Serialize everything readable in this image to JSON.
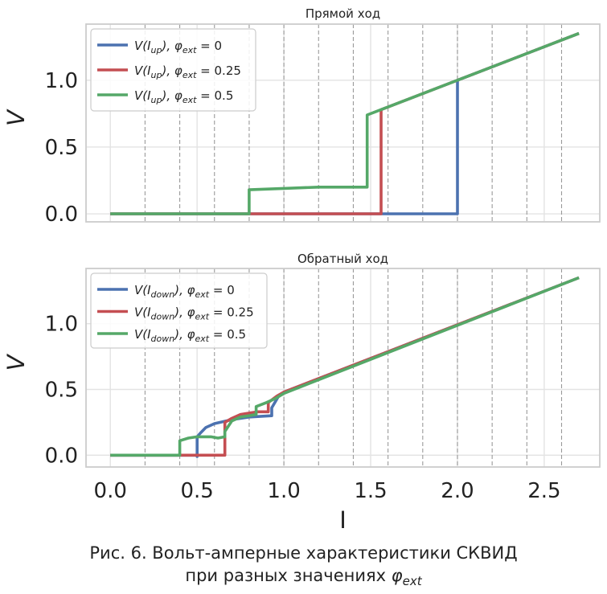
{
  "chart_data": [
    {
      "type": "line",
      "title": "Прямой ход",
      "ylabel": "V",
      "xlabel": "",
      "xlim": [
        -0.14,
        2.82
      ],
      "ylim": [
        -0.06,
        1.42
      ],
      "yticks": [
        "0.0",
        "0.5",
        "1.0"
      ],
      "grid": true,
      "legend_position": "top-left",
      "series": [
        {
          "name_base": "V(I",
          "name_sub": "up",
          "name_tail": "), φ",
          "name_ext": "ext",
          "name_val": " = 0",
          "color": "#4c72b0",
          "points": [
            [
              0.0,
              0.0
            ],
            [
              2.0,
              0.0
            ],
            [
              2.0,
              1.0
            ],
            [
              2.7,
              1.35
            ]
          ]
        },
        {
          "name_base": "V(I",
          "name_sub": "up",
          "name_tail": "), φ",
          "name_ext": "ext",
          "name_val": " = 0.25",
          "color": "#c44e52",
          "points": [
            [
              0.0,
              0.0
            ],
            [
              1.56,
              0.0
            ],
            [
              1.56,
              0.78
            ],
            [
              2.7,
              1.35
            ]
          ]
        },
        {
          "name_base": "V(I",
          "name_sub": "up",
          "name_tail": "), φ",
          "name_ext": "ext",
          "name_val": " = 0.5",
          "color": "#55a868",
          "points": [
            [
              0.0,
              0.0
            ],
            [
              0.8,
              0.0
            ],
            [
              0.8,
              0.18
            ],
            [
              1.0,
              0.19
            ],
            [
              1.2,
              0.2
            ],
            [
              1.48,
              0.2
            ],
            [
              1.48,
              0.74
            ],
            [
              1.52,
              0.76
            ],
            [
              2.7,
              1.35
            ]
          ]
        }
      ]
    },
    {
      "type": "line",
      "title": "Обратный ход",
      "ylabel": "V",
      "xlabel": "I",
      "xlim": [
        -0.14,
        2.82
      ],
      "ylim": [
        -0.09,
        1.42
      ],
      "xticks": [
        "0.0",
        "0.5",
        "1.0",
        "1.5",
        "2.0",
        "2.5"
      ],
      "yticks": [
        "0.0",
        "0.5",
        "1.0"
      ],
      "grid": true,
      "legend_position": "top-left",
      "series": [
        {
          "name_base": "V(I",
          "name_sub": "down",
          "name_tail": "), φ",
          "name_ext": "ext",
          "name_val": " = 0",
          "color": "#4c72b0",
          "points": [
            [
              0.0,
              0.0
            ],
            [
              0.5,
              0.0
            ],
            [
              0.5,
              -0.01
            ],
            [
              0.5,
              0.14
            ],
            [
              0.52,
              0.17
            ],
            [
              0.55,
              0.21
            ],
            [
              0.6,
              0.24
            ],
            [
              0.7,
              0.27
            ],
            [
              0.8,
              0.29
            ],
            [
              0.93,
              0.3
            ],
            [
              0.93,
              0.36
            ],
            [
              0.97,
              0.45
            ],
            [
              1.0,
              0.48
            ],
            [
              2.7,
              1.35
            ]
          ]
        },
        {
          "name_base": "V(I",
          "name_sub": "down",
          "name_tail": "), φ",
          "name_ext": "ext",
          "name_val": " = 0.25",
          "color": "#c44e52",
          "points": [
            [
              0.0,
              0.0
            ],
            [
              0.66,
              0.0
            ],
            [
              0.66,
              0.25
            ],
            [
              0.7,
              0.28
            ],
            [
              0.75,
              0.31
            ],
            [
              0.8,
              0.32
            ],
            [
              0.85,
              0.33
            ],
            [
              0.91,
              0.33
            ],
            [
              0.91,
              0.4
            ],
            [
              0.96,
              0.45
            ],
            [
              1.0,
              0.48
            ],
            [
              2.7,
              1.35
            ]
          ]
        },
        {
          "name_base": "V(I",
          "name_sub": "down",
          "name_tail": "), φ",
          "name_ext": "ext",
          "name_val": " = 0.5",
          "color": "#55a868",
          "points": [
            [
              0.0,
              0.0
            ],
            [
              0.4,
              0.0
            ],
            [
              0.4,
              0.11
            ],
            [
              0.45,
              0.13
            ],
            [
              0.5,
              0.14
            ],
            [
              0.58,
              0.14
            ],
            [
              0.62,
              0.13
            ],
            [
              0.66,
              0.14
            ],
            [
              0.66,
              0.18
            ],
            [
              0.7,
              0.26
            ],
            [
              0.75,
              0.29
            ],
            [
              0.8,
              0.3
            ],
            [
              0.84,
              0.31
            ],
            [
              0.84,
              0.37
            ],
            [
              0.9,
              0.4
            ],
            [
              0.95,
              0.43
            ],
            [
              1.0,
              0.47
            ],
            [
              2.7,
              1.35
            ]
          ]
        }
      ]
    }
  ],
  "vlines_x": [
    0.2,
    0.4,
    0.6,
    0.8,
    1.0,
    1.2,
    1.4,
    1.6,
    1.8,
    2.0,
    2.2,
    2.4,
    2.6
  ],
  "caption": {
    "line1": "Рис. 6. Вольт-амперные характеристики СКВИД",
    "line2_text": "при разных значениях ",
    "line2_symbol": "φ",
    "line2_sub": "ext"
  }
}
